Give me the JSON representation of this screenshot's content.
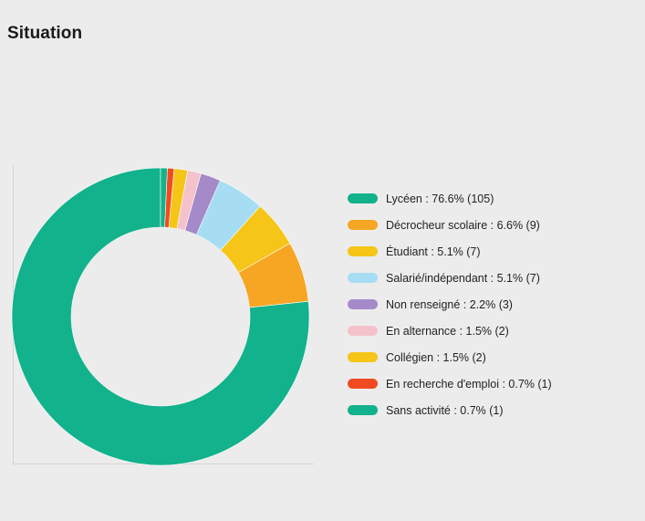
{
  "title": "Situation",
  "chart_data": {
    "type": "pie",
    "variant": "donut",
    "title": "Situation",
    "legend_position": "right",
    "slices": [
      {
        "label": "Lycéen : 76.6% (105)",
        "category": "Lycéen",
        "percent": 76.6,
        "count": 105,
        "color": "#12b28c"
      },
      {
        "label": "Décrocheur scolaire : 6.6% (9)",
        "category": "Décrocheur scolaire",
        "percent": 6.6,
        "count": 9,
        "color": "#f6a623"
      },
      {
        "label": "Étudiant : 5.1% (7)",
        "category": "Étudiant",
        "percent": 5.1,
        "count": 7,
        "color": "#f5c518"
      },
      {
        "label": "Salarié/indépendant : 5.1% (7)",
        "category": "Salarié/indépendant",
        "percent": 5.1,
        "count": 7,
        "color": "#a6ddf2"
      },
      {
        "label": "Non renseigné : 2.2% (3)",
        "category": "Non renseigné",
        "percent": 2.2,
        "count": 3,
        "color": "#a48ac9"
      },
      {
        "label": "En alternance : 1.5% (2)",
        "category": "En alternance",
        "percent": 1.5,
        "count": 2,
        "color": "#f5c2cb"
      },
      {
        "label": "Collégien : 1.5% (2)",
        "category": "Collégien",
        "percent": 1.5,
        "count": 2,
        "color": "#f5c518"
      },
      {
        "label": "En recherche d'emploi : 0.7% (1)",
        "category": "En recherche d'emploi",
        "percent": 0.7,
        "count": 1,
        "color": "#f04a23"
      },
      {
        "label": "Sans activité : 0.7% (1)",
        "category": "Sans activité",
        "percent": 0.7,
        "count": 1,
        "color": "#12b28c"
      }
    ]
  }
}
